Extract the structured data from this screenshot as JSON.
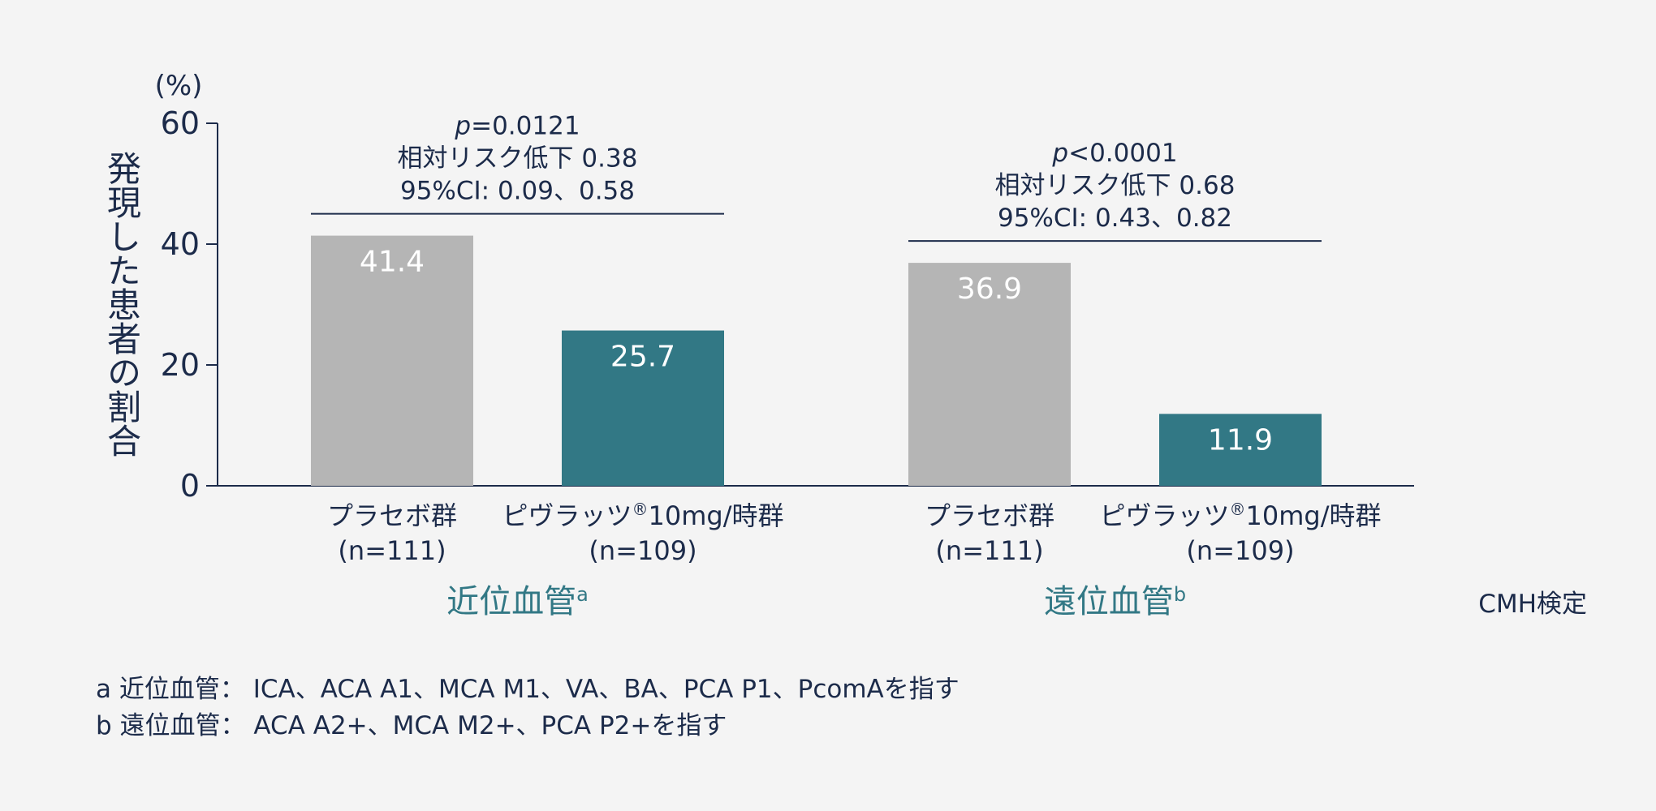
{
  "colors": {
    "placebo": "#b5b5b5",
    "treatment": "#327885",
    "text": "#1c2b4a",
    "accent": "#327885",
    "background": "#f4f4f4"
  },
  "chart_data": {
    "type": "bar",
    "ylabel": "発現した患者の割合",
    "yunit": "(%)",
    "ylim": [
      0,
      60
    ],
    "yticks": [
      0,
      20,
      40,
      60
    ],
    "grid": false,
    "groups": [
      {
        "label": "近位血管",
        "label_sup": "a",
        "bars": [
          {
            "name": "プラセボ群",
            "n": "(n=111)",
            "value": 41.4,
            "series": "placebo"
          },
          {
            "name": "ピヴラッツ",
            "name_sup": "®",
            "name_rest": "10mg/時群",
            "n": "(n=109)",
            "value": 25.7,
            "series": "treatment"
          }
        ],
        "stats": [
          "p",
          "=0.0121",
          "相対リスク低下 0.38",
          "95%CI: 0.09、0.58"
        ]
      },
      {
        "label": "遠位血管",
        "label_sup": "b",
        "bars": [
          {
            "name": "プラセボ群",
            "n": "(n=111)",
            "value": 36.9,
            "series": "placebo"
          },
          {
            "name": "ピヴラッツ",
            "name_sup": "®",
            "name_rest": "10mg/時群",
            "n": "(n=109)",
            "value": 11.9,
            "series": "treatment"
          }
        ],
        "stats": [
          "p",
          "<0.0001",
          "相対リスク低下 0.68",
          "95%CI: 0.43、0.82"
        ]
      }
    ],
    "test_note": "CMH検定"
  },
  "footnotes": [
    "a 近位血管： ICA、ACA A1、MCA M1、VA、BA、PCA P1、PcomAを指す",
    "b 遠位血管： ACA A2+、MCA M2+、PCA P2+を指す"
  ]
}
